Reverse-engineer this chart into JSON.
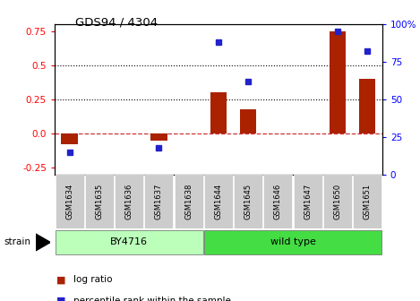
{
  "title": "GDS94 / 4304",
  "samples": [
    "GSM1634",
    "GSM1635",
    "GSM1636",
    "GSM1637",
    "GSM1638",
    "GSM1644",
    "GSM1645",
    "GSM1646",
    "GSM1647",
    "GSM1650",
    "GSM1651"
  ],
  "log_ratio": [
    -0.08,
    0.0,
    0.0,
    -0.05,
    0.0,
    0.3,
    0.18,
    0.0,
    0.0,
    0.75,
    0.4
  ],
  "percentile_rank": [
    15.0,
    null,
    null,
    18.0,
    null,
    88.0,
    62.0,
    null,
    null,
    95.0,
    82.0
  ],
  "groups": [
    {
      "label": "BY4716",
      "start": 0,
      "end": 4,
      "color": "#bbffbb"
    },
    {
      "label": "wild type",
      "start": 5,
      "end": 10,
      "color": "#44dd44"
    }
  ],
  "ylim_left": [
    -0.3,
    0.8
  ],
  "ylim_right": [
    0,
    100
  ],
  "yticks_left": [
    -0.25,
    0.0,
    0.25,
    0.5,
    0.75
  ],
  "yticks_right": [
    0,
    25,
    50,
    75,
    100
  ],
  "hlines": [
    0.5,
    0.25
  ],
  "bar_color": "#aa2200",
  "scatter_color": "#2222cc",
  "zero_line_color": "#cc3333",
  "background_plot": "#ffffff",
  "background_label": "#cccccc",
  "strain_label": "strain",
  "legend_log": "log ratio",
  "legend_pct": "percentile rank within the sample"
}
